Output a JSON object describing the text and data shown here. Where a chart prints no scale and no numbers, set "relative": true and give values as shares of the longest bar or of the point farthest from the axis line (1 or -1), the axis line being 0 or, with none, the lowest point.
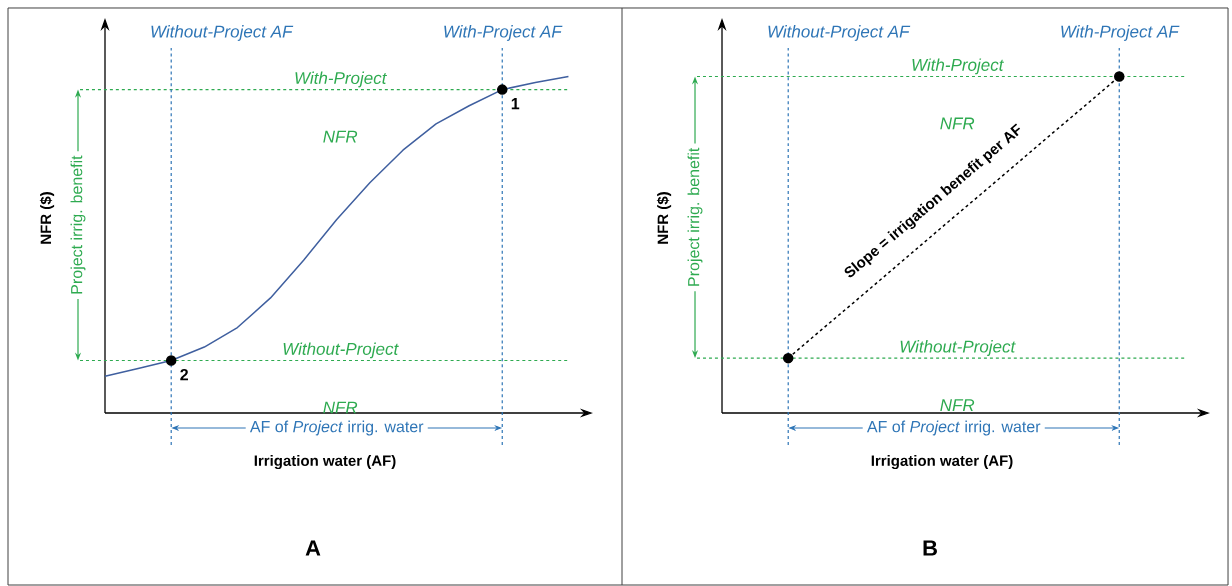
{
  "chart_data": [
    {
      "type": "line",
      "title": "A",
      "xlabel": "Irrigation water (AF)",
      "ylabel": "NFR ($)",
      "relative": true,
      "categories": [
        null,
        null,
        null,
        null,
        null,
        null,
        null,
        null,
        null,
        null,
        null,
        null,
        null,
        null,
        null
      ],
      "series": [
        {
          "color": "#3f5f9f",
          "line_style": "solid",
          "marker": "none",
          "values": [
            0.109,
            0.132,
            0.156,
            0.196,
            0.254,
            0.342,
            0.454,
            0.575,
            0.684,
            0.781,
            0.859,
            0.913,
            0.961,
            0.982,
            1.0
          ]
        },
        {
          "color": "#000000",
          "marker": "circle",
          "values": [
            null,
            null,
            0.156,
            null,
            null,
            null,
            null,
            null,
            null,
            null,
            null,
            null,
            0.961,
            null,
            null
          ]
        }
      ],
      "ref_lines": [
        {
          "axis": "y",
          "value": 0.156,
          "label": "Without-Project",
          "color": "#2eaa50",
          "line_style": "dashed"
        },
        {
          "axis": "y",
          "value": 0.961,
          "label": "With-Project",
          "color": "#2eaa50",
          "line_style": "dashed"
        }
      ],
      "annotations": [
        "Without-Project AF",
        "With-Project AF",
        "Project irrig. benefit",
        "AF of *Project* irrig. water",
        "NFR",
        "NFR",
        "2",
        "1"
      ]
    },
    {
      "type": "line",
      "title": "B",
      "xlabel": "Irrigation water (AF)",
      "ylabel": "NFR ($)",
      "relative": true,
      "categories": [
        null,
        null,
        null,
        null,
        null,
        null,
        null,
        null,
        null,
        null,
        null,
        null,
        null,
        null,
        null
      ],
      "series": [
        {
          "color": "#000000",
          "line_style": "dashed",
          "marker": "none",
          "values": [
            null,
            null,
            0.163,
            0.247,
            0.33,
            0.414,
            0.498,
            0.582,
            0.665,
            0.749,
            0.833,
            0.916,
            1.0,
            null,
            null
          ]
        },
        {
          "color": "#000000",
          "marker": "circle",
          "values": [
            null,
            null,
            0.163,
            null,
            null,
            null,
            null,
            null,
            null,
            null,
            null,
            null,
            1.0,
            null,
            null
          ]
        }
      ],
      "ref_lines": [
        {
          "axis": "y",
          "value": 0.163,
          "label": "Without-Project",
          "color": "#2eaa50",
          "line_style": "dashed"
        },
        {
          "axis": "y",
          "value": 1.0,
          "label": "With-Project",
          "color": "#2eaa50",
          "line_style": "dashed"
        }
      ],
      "annotations": [
        "Without-Project AF",
        "With-Project AF",
        "Project irrig. benefit",
        "AF of *Project* irrig. water",
        "NFR",
        "NFR",
        "Slope = irrigation benefit per AF"
      ]
    }
  ]
}
